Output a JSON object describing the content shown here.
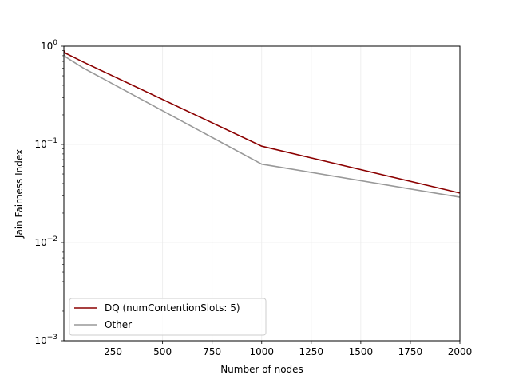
{
  "chart_data": {
    "type": "line",
    "title": "",
    "xlabel": "Number of nodes",
    "ylabel": "Jain Fairness Index",
    "xlim": [
      2,
      2000
    ],
    "ylim": [
      0.001,
      1
    ],
    "yscale": "log",
    "grid": true,
    "legend_position": "lower-left",
    "x_ticks": [
      250,
      500,
      750,
      1000,
      1250,
      1500,
      1750,
      2000
    ],
    "x_tick_labels": [
      "250",
      "500",
      "750",
      "1000",
      "1250",
      "1500",
      "1750",
      "2000"
    ],
    "y_ticks": [
      0.001,
      0.01,
      0.1,
      1
    ],
    "y_tick_labels": [
      {
        "base": "10",
        "exp": "−3"
      },
      {
        "base": "10",
        "exp": "−2"
      },
      {
        "base": "10",
        "exp": "−1"
      },
      {
        "base": "10",
        "exp": "0"
      }
    ],
    "series": [
      {
        "name": "DQ (numContentionSlots: 5)",
        "color": "#8b0000",
        "x": [
          2,
          10,
          100,
          1000,
          2000
        ],
        "y": [
          0.9,
          0.85,
          0.69,
          0.096,
          0.032
        ]
      },
      {
        "name": "Other",
        "color": "#999999",
        "x": [
          2,
          10,
          100,
          1000,
          2000
        ],
        "y": [
          0.85,
          0.78,
          0.6,
          0.063,
          0.029
        ]
      }
    ]
  }
}
